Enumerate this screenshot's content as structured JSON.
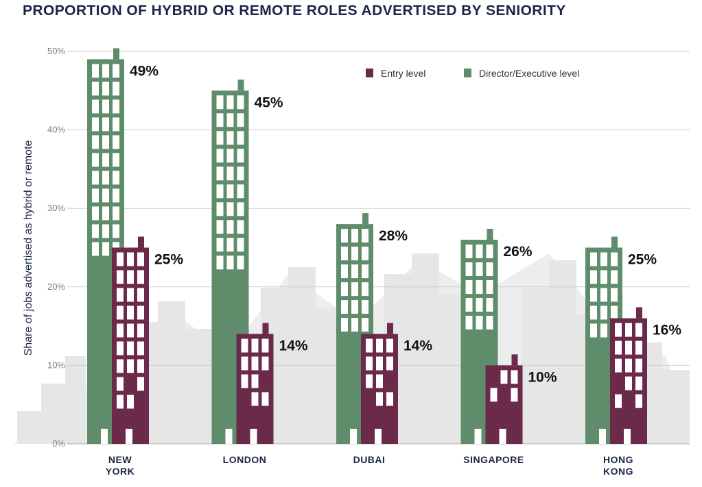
{
  "chart_data": {
    "type": "bar",
    "title": "PROPORTION OF HYBRID OR REMOTE ROLES ADVERTISED BY SENIORITY",
    "ylabel": "Share of jobs advertised as hybrid or remote",
    "xlabel": "",
    "ylim": [
      0,
      50
    ],
    "yticks": [
      "0%",
      "10%",
      "20%",
      "30%",
      "40%",
      "50%"
    ],
    "grid": true,
    "legend_position": "top-right",
    "categories": [
      [
        "NEW",
        "YORK"
      ],
      [
        "LONDON"
      ],
      [
        "DUBAI"
      ],
      [
        "SINGAPORE"
      ],
      [
        "HONG",
        "KONG"
      ]
    ],
    "series": [
      {
        "name": "Director/Executive level",
        "color": "#5f8d6b",
        "values": [
          49,
          45,
          28,
          26,
          25
        ],
        "labels": [
          "49%",
          "45%",
          "28%",
          "26%",
          "25%"
        ]
      },
      {
        "name": "Entry level",
        "color": "#6b2a4a",
        "values": [
          25,
          14,
          14,
          10,
          16
        ],
        "labels": [
          "25%",
          "14%",
          "14%",
          "10%",
          "16%"
        ]
      }
    ],
    "legend_order": [
      "Entry level",
      "Director/Executive level"
    ]
  },
  "colors": {
    "title": "#1b2547",
    "grid": "#cfcfcf",
    "skyline": "#e6e6e6"
  }
}
